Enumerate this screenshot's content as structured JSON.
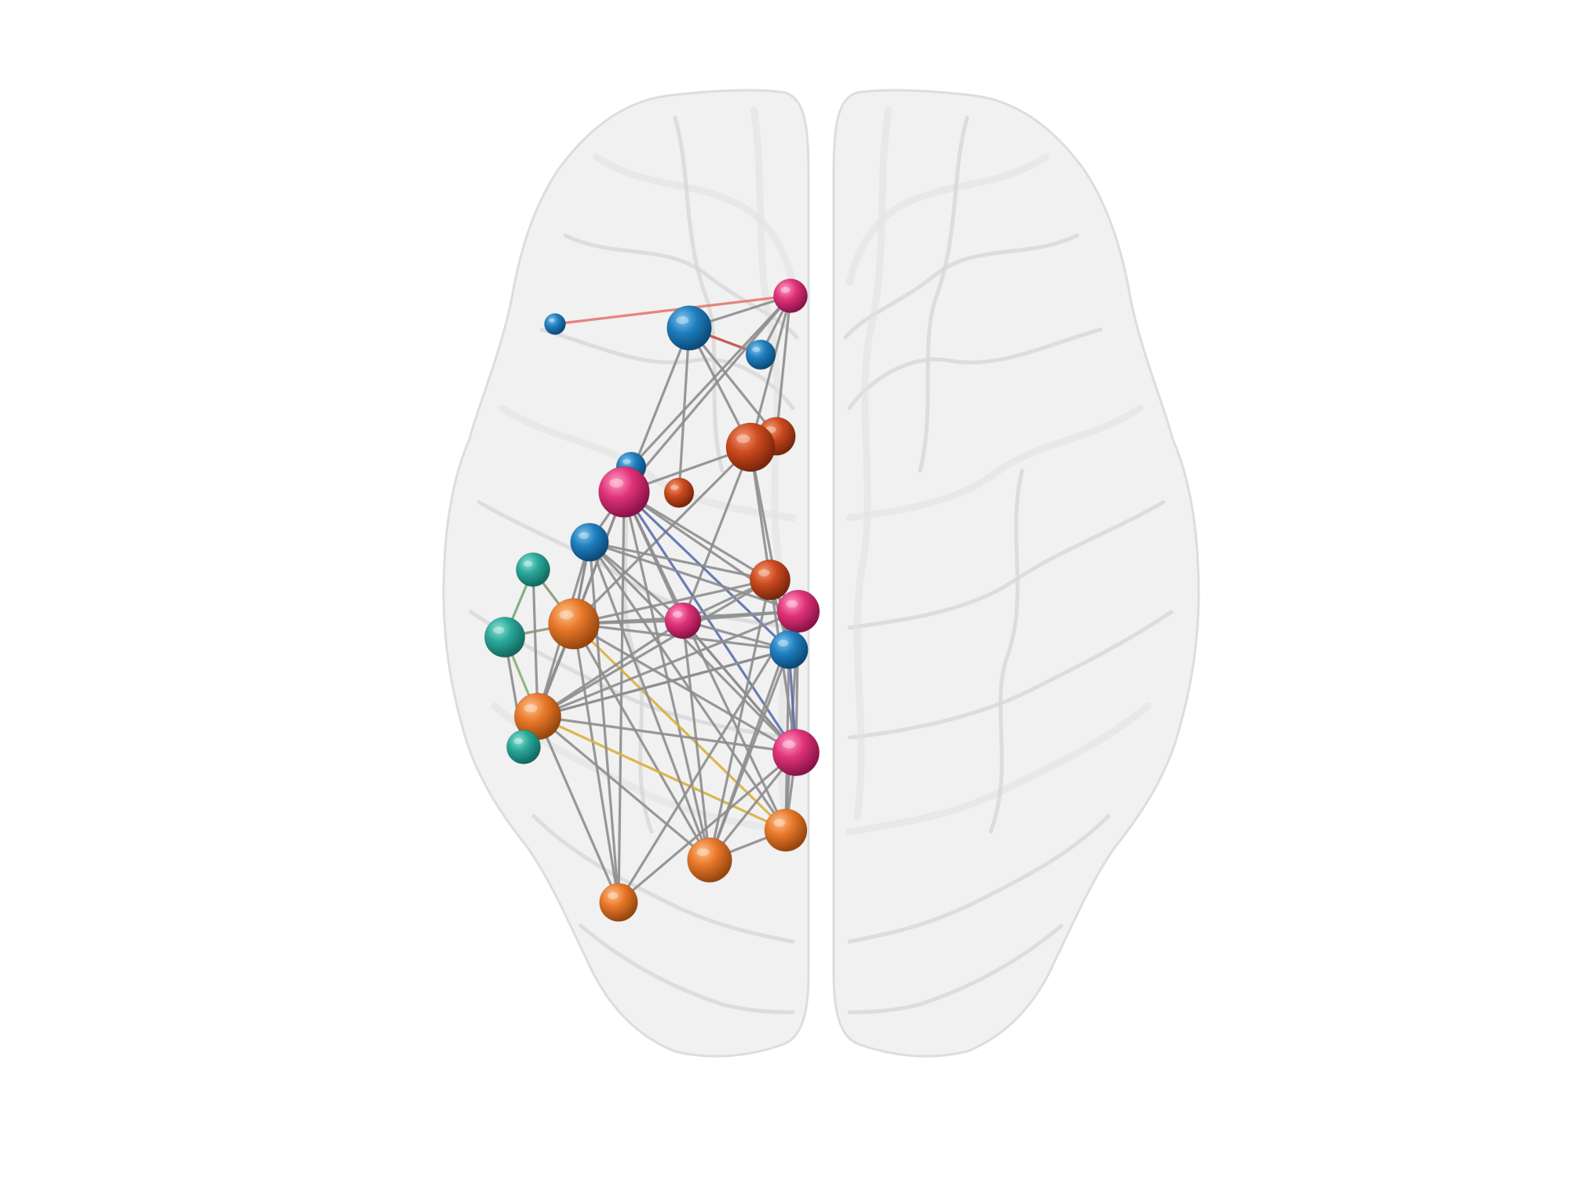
{
  "colors": {
    "background": "#ffffff",
    "brain_fill": "#eeeeee",
    "brain_sulci": "#d4d4d4",
    "edge_default": "#8e8e8e",
    "module_blue": "#1f7fbf",
    "module_pink": "#e0337a",
    "module_red": "#cc4a1f",
    "module_orange": "#e8782a",
    "module_teal": "#2aa89a"
  },
  "diagram": {
    "type": "brain-network",
    "view": "axial-top",
    "nodes": [
      {
        "id": "n1",
        "module": "blue",
        "size": 1.0
      },
      {
        "id": "n2",
        "module": "pink",
        "size": 1.6
      },
      {
        "id": "n3",
        "module": "blue",
        "size": 2.1
      },
      {
        "id": "n4",
        "module": "blue",
        "size": 1.4
      },
      {
        "id": "n5",
        "module": "red",
        "size": 1.8
      },
      {
        "id": "n6",
        "module": "red",
        "size": 2.3
      },
      {
        "id": "n7",
        "module": "blue",
        "size": 1.4
      },
      {
        "id": "n8",
        "module": "pink",
        "size": 2.4
      },
      {
        "id": "n9",
        "module": "red",
        "size": 1.4
      },
      {
        "id": "n10",
        "module": "blue",
        "size": 1.8
      },
      {
        "id": "n11",
        "module": "teal",
        "size": 1.6
      },
      {
        "id": "n12",
        "module": "red",
        "size": 1.9
      },
      {
        "id": "n13",
        "module": "pink",
        "size": 2.0
      },
      {
        "id": "n14",
        "module": "teal",
        "size": 1.9
      },
      {
        "id": "n15",
        "module": "orange",
        "size": 2.4
      },
      {
        "id": "n16",
        "module": "pink",
        "size": 1.7
      },
      {
        "id": "n17",
        "module": "blue",
        "size": 1.8
      },
      {
        "id": "n18",
        "module": "orange",
        "size": 2.2
      },
      {
        "id": "n19",
        "module": "teal",
        "size": 1.6
      },
      {
        "id": "n20",
        "module": "pink",
        "size": 2.2
      },
      {
        "id": "n21",
        "module": "orange",
        "size": 2.0
      },
      {
        "id": "n22",
        "module": "orange",
        "size": 2.1
      },
      {
        "id": "n23",
        "module": "orange",
        "size": 1.8
      }
    ],
    "edges": [
      {
        "from": "n1",
        "to": "n2",
        "color": "#e57870"
      },
      {
        "from": "n3",
        "to": "n4",
        "color": "#c44a3e"
      },
      {
        "from": "n3",
        "to": "n2",
        "color": "#8e8e8e"
      },
      {
        "from": "n4",
        "to": "n2",
        "color": "#8e8e8e"
      },
      {
        "from": "n2",
        "to": "n6",
        "color": "#8e8e8e"
      },
      {
        "from": "n2",
        "to": "n7",
        "color": "#8e8e8e"
      },
      {
        "from": "n2",
        "to": "n8",
        "color": "#8e8e8e"
      },
      {
        "from": "n2",
        "to": "n5",
        "color": "#8e8e8e"
      },
      {
        "from": "n3",
        "to": "n6",
        "color": "#8e8e8e"
      },
      {
        "from": "n3",
        "to": "n8",
        "color": "#8e8e8e"
      },
      {
        "from": "n3",
        "to": "n9",
        "color": "#8e8e8e"
      },
      {
        "from": "n3",
        "to": "n5",
        "color": "#8e8e8e"
      },
      {
        "from": "n6",
        "to": "n8",
        "color": "#8e8e8e"
      },
      {
        "from": "n6",
        "to": "n12",
        "color": "#8e8e8e"
      },
      {
        "from": "n6",
        "to": "n16",
        "color": "#8e8e8e"
      },
      {
        "from": "n6",
        "to": "n17",
        "color": "#8e8e8e"
      },
      {
        "from": "n6",
        "to": "n15",
        "color": "#8e8e8e"
      },
      {
        "from": "n8",
        "to": "n10",
        "color": "#8e8e8e"
      },
      {
        "from": "n8",
        "to": "n15",
        "color": "#8e8e8e"
      },
      {
        "from": "n8",
        "to": "n18",
        "color": "#8e8e8e"
      },
      {
        "from": "n8",
        "to": "n12",
        "color": "#8e8e8e"
      },
      {
        "from": "n8",
        "to": "n13",
        "color": "#8e8e8e"
      },
      {
        "from": "n8",
        "to": "n16",
        "color": "#8e8e8e"
      },
      {
        "from": "n8",
        "to": "n20",
        "color": "#5c6fae"
      },
      {
        "from": "n8",
        "to": "n17",
        "color": "#5c6fae"
      },
      {
        "from": "n8",
        "to": "n21",
        "color": "#8e8e8e"
      },
      {
        "from": "n8",
        "to": "n22",
        "color": "#8e8e8e"
      },
      {
        "from": "n8",
        "to": "n23",
        "color": "#8e8e8e"
      },
      {
        "from": "n10",
        "to": "n15",
        "color": "#8e8e8e"
      },
      {
        "from": "n10",
        "to": "n18",
        "color": "#8e8e8e"
      },
      {
        "from": "n10",
        "to": "n12",
        "color": "#8e8e8e"
      },
      {
        "from": "n11",
        "to": "n15",
        "color": "#8a9a70"
      },
      {
        "from": "n11",
        "to": "n14",
        "color": "#7aa87a"
      },
      {
        "from": "n14",
        "to": "n15",
        "color": "#8a9a70"
      },
      {
        "from": "n14",
        "to": "n18",
        "color": "#8ab07a"
      },
      {
        "from": "n15",
        "to": "n18",
        "color": "#8e8e8e"
      },
      {
        "from": "n15",
        "to": "n19",
        "color": "#8e8e8e"
      },
      {
        "from": "n15",
        "to": "n13",
        "color": "#8e8e8e"
      },
      {
        "from": "n15",
        "to": "n12",
        "color": "#8e8e8e"
      },
      {
        "from": "n15",
        "to": "n16",
        "color": "#8e8e8e"
      },
      {
        "from": "n15",
        "to": "n17",
        "color": "#8e8e8e"
      },
      {
        "from": "n15",
        "to": "n20",
        "color": "#8e8e8e"
      },
      {
        "from": "n15",
        "to": "n21",
        "color": "#d9b040"
      },
      {
        "from": "n15",
        "to": "n22",
        "color": "#8e8e8e"
      },
      {
        "from": "n15",
        "to": "n23",
        "color": "#8e8e8e"
      },
      {
        "from": "n18",
        "to": "n12",
        "color": "#8e8e8e"
      },
      {
        "from": "n18",
        "to": "n16",
        "color": "#8e8e8e"
      },
      {
        "from": "n18",
        "to": "n17",
        "color": "#8e8e8e"
      },
      {
        "from": "n18",
        "to": "n20",
        "color": "#8e8e8e"
      },
      {
        "from": "n18",
        "to": "n21",
        "color": "#d9b040"
      },
      {
        "from": "n18",
        "to": "n22",
        "color": "#8e8e8e"
      },
      {
        "from": "n18",
        "to": "n13",
        "color": "#8e8e8e"
      },
      {
        "from": "n12",
        "to": "n16",
        "color": "#8e8e8e"
      },
      {
        "from": "n12",
        "to": "n17",
        "color": "#8e8e8e"
      },
      {
        "from": "n12",
        "to": "n20",
        "color": "#8e8e8e"
      },
      {
        "from": "n12",
        "to": "n13",
        "color": "#8e8e8e"
      },
      {
        "from": "n12",
        "to": "n22",
        "color": "#8e8e8e"
      },
      {
        "from": "n13",
        "to": "n16",
        "color": "#8e8e8e"
      },
      {
        "from": "n13",
        "to": "n20",
        "color": "#8e8e8e"
      },
      {
        "from": "n13",
        "to": "n21",
        "color": "#8e8e8e"
      },
      {
        "from": "n13",
        "to": "n22",
        "color": "#8e8e8e"
      },
      {
        "from": "n13",
        "to": "n23",
        "color": "#8e8e8e"
      },
      {
        "from": "n16",
        "to": "n17",
        "color": "#8e8e8e"
      },
      {
        "from": "n16",
        "to": "n20",
        "color": "#8e8e8e"
      },
      {
        "from": "n16",
        "to": "n22",
        "color": "#8e8e8e"
      },
      {
        "from": "n17",
        "to": "n20",
        "color": "#5c6fae"
      },
      {
        "from": "n17",
        "to": "n21",
        "color": "#8e8e8e"
      },
      {
        "from": "n17",
        "to": "n22",
        "color": "#8e8e8e"
      },
      {
        "from": "n17",
        "to": "n18",
        "color": "#8e8e8e"
      },
      {
        "from": "n20",
        "to": "n21",
        "color": "#8e8e8e"
      },
      {
        "from": "n20",
        "to": "n22",
        "color": "#8e8e8e"
      },
      {
        "from": "n20",
        "to": "n23",
        "color": "#8e8e8e"
      },
      {
        "from": "n21",
        "to": "n22",
        "color": "#8e8e8e"
      },
      {
        "from": "n10",
        "to": "n23",
        "color": "#8e8e8e"
      },
      {
        "from": "n10",
        "to": "n22",
        "color": "#8e8e8e"
      },
      {
        "from": "n10",
        "to": "n21",
        "color": "#8e8e8e"
      },
      {
        "from": "n10",
        "to": "n20",
        "color": "#8e8e8e"
      },
      {
        "from": "n10",
        "to": "n16",
        "color": "#8e8e8e"
      },
      {
        "from": "n10",
        "to": "n13",
        "color": "#8e8e8e"
      },
      {
        "from": "n7",
        "to": "n8",
        "color": "#8e8e8e"
      },
      {
        "from": "n5",
        "to": "n6",
        "color": "#8e8e8e"
      },
      {
        "from": "n15",
        "to": "n10",
        "color": "#8e8e8e"
      },
      {
        "from": "n14",
        "to": "n19",
        "color": "#8e8e8e"
      },
      {
        "from": "n18",
        "to": "n23",
        "color": "#8e8e8e"
      },
      {
        "from": "n20",
        "to": "n16",
        "color": "#8e8e8e"
      },
      {
        "from": "n11",
        "to": "n18",
        "color": "#8e8e8e"
      }
    ]
  }
}
